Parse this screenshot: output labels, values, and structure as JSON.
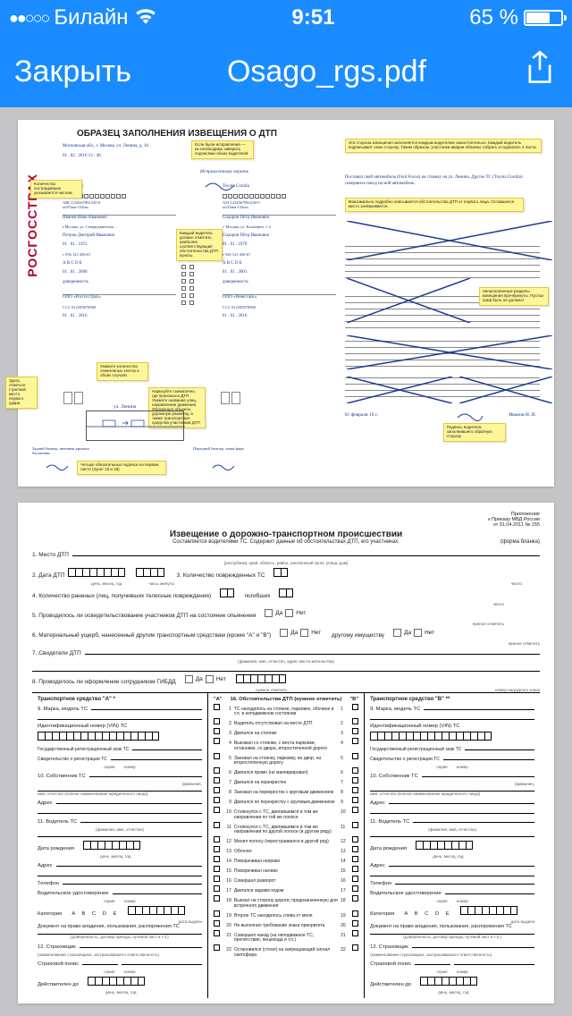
{
  "status": {
    "dots": "●●○○○",
    "carrier": "Билайн",
    "time": "9:51",
    "battery_pct": "65 %",
    "battery_fill_pct": 65
  },
  "nav": {
    "close": "Закрыть",
    "title": "Osago_rgs.pdf"
  },
  "page1": {
    "title": "ОБРАЗЕЦ ЗАПОЛНЕНИЯ ИЗВЕЩЕНИЯ О ДТП",
    "logo": "РОСГОССТРАХ",
    "sticky_top_left": "Если были исправления — их необходимо заверить подписями обоих водителей",
    "sticky_top_right": "Эта сторона извещения заполняется каждым водителем самостоятельно. Каждый водитель подписывает свою сторону. Таким образом, участники аварии обязаны собрать и подписать 4 листа.",
    "hw_top_address": "Московская обл., г. Москва, ул. Ленина, д. 10",
    "hw_top_date": "01 . 02 . 2016   13 : 40",
    "hw_signed": "Исправленному верить",
    "hw_right_desc": "Поставил свой автомобиль (Ford Focus) на стоянку на ул. Ленина. Другое ТС (Toyota Corolla) совершило наезд на мой автомобиль.",
    "sticky_right_mid1": "Максимально подробно описывается обстоятельства ДТП от первого лица. Оставшееся место зачёркивается.",
    "sticky_right_mid2": "Ненаполненные разделы извещения прочёркнуты. Пустых граф быть не должно!",
    "sticky_right_bottom": "Подпись водителя, заполнившего обратную сторону",
    "hw_a_car": "Ford Focus",
    "hw_a_vin": "ABC1234567891230-0",
    "hw_a_reg": "м103мм-154rus",
    "hw_a_owner": "Иванов Иван Иванович",
    "hw_a_addr": "г.Москва, ул. Северодвинская…",
    "hw_a_driver": "Петров Дмитрий Иванович",
    "hw_a_dob": "01 . 01 . 1953",
    "hw_a_lic": "т 956 123 456-67",
    "hw_a_cat": "А В С D E",
    "hw_a_lic_date": "01 . 01 . 2000",
    "hw_a_type": "доверенность",
    "hw_a_ins": "ООО «Росгосстрах»",
    "hw_a_pol": "CCC 012345678900",
    "hw_a_pol_date": "01 . 01 . 2016",
    "hw_b_car": "Toyota Corolla",
    "hw_b_vin": "ASC1234567891230-0",
    "hw_b_reg": "м125мм-154rus",
    "hw_b_owner": "Сидоров Пётр Иванович",
    "hw_b_addr": "г. Москва, ул. Калинина, 1-2",
    "hw_b_dob": "01 . 01 . 1970",
    "hw_b_lic": "т 926 123 456-67",
    "hw_b_lic_date": "01 . 01 . 2001",
    "hw_b_ins": "ООО «Ренессанс»",
    "sticky_mid_col": "Каждый водитель должен отметить наиболее соответствующие обстоятельства ДТП пункты.",
    "sticky_count": "Укажите количество отмеченных клеток в обоих случаях",
    "sticky_arrow": "Здесь отметьте стрелкой место первого удара",
    "sticky_scheme": "Нарисуйте схематично, где произошло ДТП. Укажите название улиц, направление движения. Обозначьте объекты, дорожную разметку, а также транспортные средства участников ДТП",
    "sticky_bottom_sign": "Четыре обязательных подписи на первом листе (пункт 15 и 18)",
    "hw_street": "ул. Ленина",
    "hw_damage_a": "Задний бампер, внешняя крышка багажника",
    "hw_damage_b": "Передний бампер, левая фара",
    "hw_right_date": "01   февраля   16 г.",
    "hw_right_name": "Иванов И. И."
  },
  "page2": {
    "annex": "Приложение",
    "annex2": "к Приказу МВД России",
    "annex3": "от 01.04.2011 № 155",
    "title": "Извещение о дорожно-транспортном происшествии",
    "subtitle": "Составляется водителями ТС. Содержит данные об обстоятельствах ДТП, его участниках.",
    "form_label": "(форма бланка)",
    "f1": "1. Место ДТП",
    "f1_note": "(республика, край, область, район, населенный пункт, улица, дом)",
    "f2": "2. Дата ДТП",
    "f2_note1": "день, месяц, год",
    "f2_note2": "часы, минуты",
    "f3": "3. Количество поврежденных ТС",
    "f3_note": "число",
    "f4": "4. Количество раненых (лиц, получивших телесные повреждения)",
    "f4_a": "погибших",
    "f5": "5. Проводилось ли освидетельствование участников ДТП на состояние опьянения",
    "yes": "Да",
    "no": "Нет",
    "note_underline": "нужное отметить",
    "f6": "6. Материальный ущерб, нанесенный другим транспортным средствам (кроме \"А\" и \"В\")",
    "f6_other": "другому имуществу",
    "f7": "7. Свидетели ДТП",
    "f7_note": "(фамилия, имя, отчество, адрес места жительства)",
    "f8": "8. Проводилось ли оформление сотрудником ГИБДД",
    "f8_note": "номер нагрудного знака",
    "vehA": "Транспортное средство \"А\" *",
    "vehB": "Транспортное средство \"В\" **",
    "f9": "9. Марка, модель ТС",
    "fVIN": "Идентификационный номер (VIN) ТС",
    "fGosReg": "Государственный регистрационный знак ТС",
    "fSvid": "Свидетельство о регистрации ТС",
    "fSeria": "серия",
    "fNomer": "номер",
    "f10": "10. Собственник ТС",
    "f10_note1": "(фамилия,",
    "f10_note2": "имя, отчество (полное наименование юридического лица))",
    "fAdres": "Адрес",
    "f11": "11. Водитель ТС",
    "f11_note": "(фамилия, имя, отчество)",
    "fDob": "Дата рождения",
    "fDob_note": "день, месяц, год",
    "fTel": "Телефон",
    "fVU": "Водительское удостоверение",
    "fKat": "Категория",
    "fKat_ops": "A  B  C  D  E",
    "fKat_note": "дата выдачи",
    "fDoc": "Документ на право владения, пользования, распоряжения ТС",
    "fDoc_note": "(доверенность, договор аренды, путевой лист и т.п.)",
    "f12": "12. Страховщик",
    "f12_note": "(наименование страховщика, застраховавшего ответственность)",
    "fPol": "Страховой полис",
    "fDeist": "Действителен до",
    "c16": "16. Обстоятельства ДТП (нужное отметить)",
    "circs": [
      "ТС находилось на стоянке, парковке, обочине и т.п. в неподвижном состоянии",
      "Водитель отсутствовал на месте ДТП",
      "Двигался на стоянке",
      "Выезжал со стоянки, с места парковки, остановки, со двора, второстепенной дороги",
      "Заезжал на стоянку, парковку, во двор, на второстепенную дорогу",
      "Двигался прямо (не маневрировал)",
      "Двигался на перекрестке",
      "Заезжал на перекресток с круговым движением",
      "Двигался по перекрестку с круговым движением",
      "Столкнулся с ТС, двигавшимся в том же направлении по той же полосе",
      "Столкнулся с ТС, двигавшимся в том же направлении по другой полосе (в другом ряду)",
      "Менял полосу (перестраивался в другой ряд)",
      "Обгонял",
      "Поворачивал направо",
      "Поворачивал налево",
      "Совершал разворот",
      "Двигался задним ходом",
      "Выехал на сторону дороги, предназначенную для встречного движения",
      "Второе ТС находилось слева от меня",
      "Не выполнил требование знака приоритета",
      "Совершил наезд (на неподвижное ТС, препятствие, пешехода и т.п.)",
      "Остановился (стоял) на запрещающий сигнал светофора"
    ],
    "colA": "\"А\"",
    "colB": "\"В\""
  },
  "colors": {
    "ios_blue": "#1a8cff",
    "sticky": "#fff699",
    "logo_red": "#b4002b",
    "hw_ink": "#1a3a8f",
    "page_bg": "#ffffff",
    "doc_bg": "#c5c5c7"
  }
}
